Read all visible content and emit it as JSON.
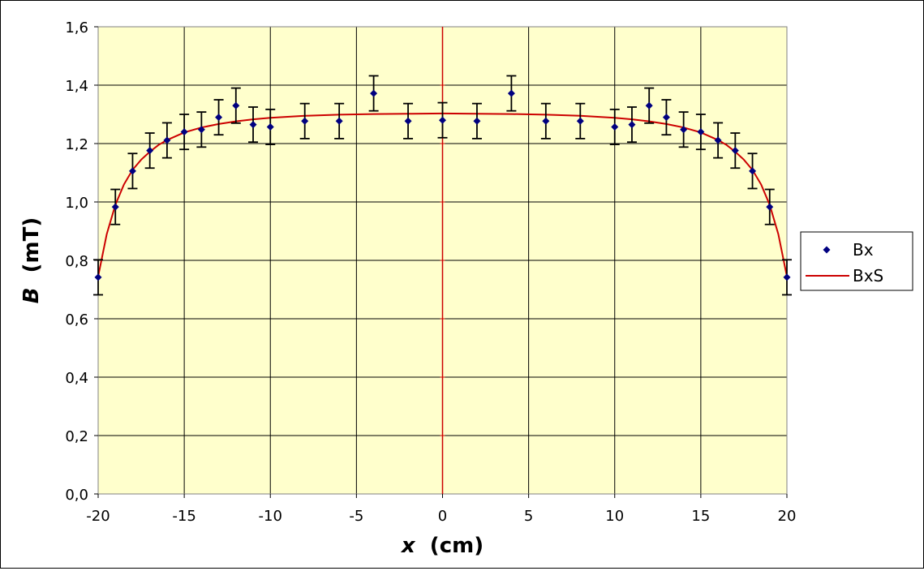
{
  "chart_data": {
    "type": "scatter",
    "xlabel_var": "x",
    "xlabel_unit": "(cm)",
    "ylabel_var": "B",
    "ylabel_unit": "(mT)",
    "xlim": [
      -20,
      20
    ],
    "ylim": [
      0,
      1.6
    ],
    "x_ticks": [
      -20,
      -15,
      -10,
      -5,
      0,
      5,
      10,
      15,
      20
    ],
    "y_ticks": [
      0,
      0.2,
      0.4,
      0.6,
      0.8,
      1.0,
      1.2,
      1.4,
      1.6
    ],
    "x_tick_labels": [
      "-20",
      "-15",
      "-10",
      "-5",
      "0",
      "5",
      "10",
      "15",
      "20"
    ],
    "y_tick_labels": [
      "0,0",
      "0,2",
      "0,4",
      "0,6",
      "0,8",
      "1,0",
      "1,2",
      "1,4",
      "1,6"
    ],
    "grid": true,
    "legend_position": "right",
    "plot_background": "#FFFFCC",
    "series": [
      {
        "name": "Bx",
        "kind": "points",
        "color": "#000080",
        "error": 0.06,
        "x": [
          -20,
          -19,
          -18,
          -17,
          -16,
          -15,
          -14,
          -13,
          -12,
          -11,
          -10,
          -8,
          -6,
          -4,
          -2,
          0,
          2,
          4,
          6,
          8,
          10,
          11,
          12,
          13,
          14,
          15,
          16,
          17,
          18,
          19,
          20
        ],
        "y": [
          0.742,
          0.983,
          1.106,
          1.176,
          1.211,
          1.24,
          1.248,
          1.29,
          1.33,
          1.265,
          1.257,
          1.277,
          1.277,
          1.372,
          1.277,
          1.28,
          1.277,
          1.372,
          1.277,
          1.277,
          1.257,
          1.265,
          1.33,
          1.29,
          1.248,
          1.24,
          1.211,
          1.176,
          1.106,
          0.983,
          0.742
        ]
      },
      {
        "name": "BxS",
        "kind": "line",
        "color": "#CC0000",
        "x": [
          -20,
          -19.5,
          -19,
          -18.5,
          -18,
          -17.5,
          -17,
          -16.5,
          -16,
          -15,
          -14,
          -13,
          -12,
          -11,
          -10,
          -8,
          -6,
          -4,
          -2,
          0,
          2,
          4,
          6,
          8,
          10,
          11,
          12,
          13,
          14,
          15,
          16,
          16.5,
          17,
          17.5,
          18,
          18.5,
          19,
          19.5,
          20
        ],
        "y": [
          0.745,
          0.89,
          0.99,
          1.06,
          1.11,
          1.145,
          1.172,
          1.195,
          1.212,
          1.238,
          1.255,
          1.267,
          1.276,
          1.283,
          1.288,
          1.295,
          1.299,
          1.301,
          1.302,
          1.303,
          1.302,
          1.301,
          1.299,
          1.295,
          1.288,
          1.283,
          1.276,
          1.267,
          1.255,
          1.238,
          1.212,
          1.195,
          1.172,
          1.145,
          1.11,
          1.06,
          0.99,
          0.89,
          0.745
        ]
      }
    ]
  }
}
